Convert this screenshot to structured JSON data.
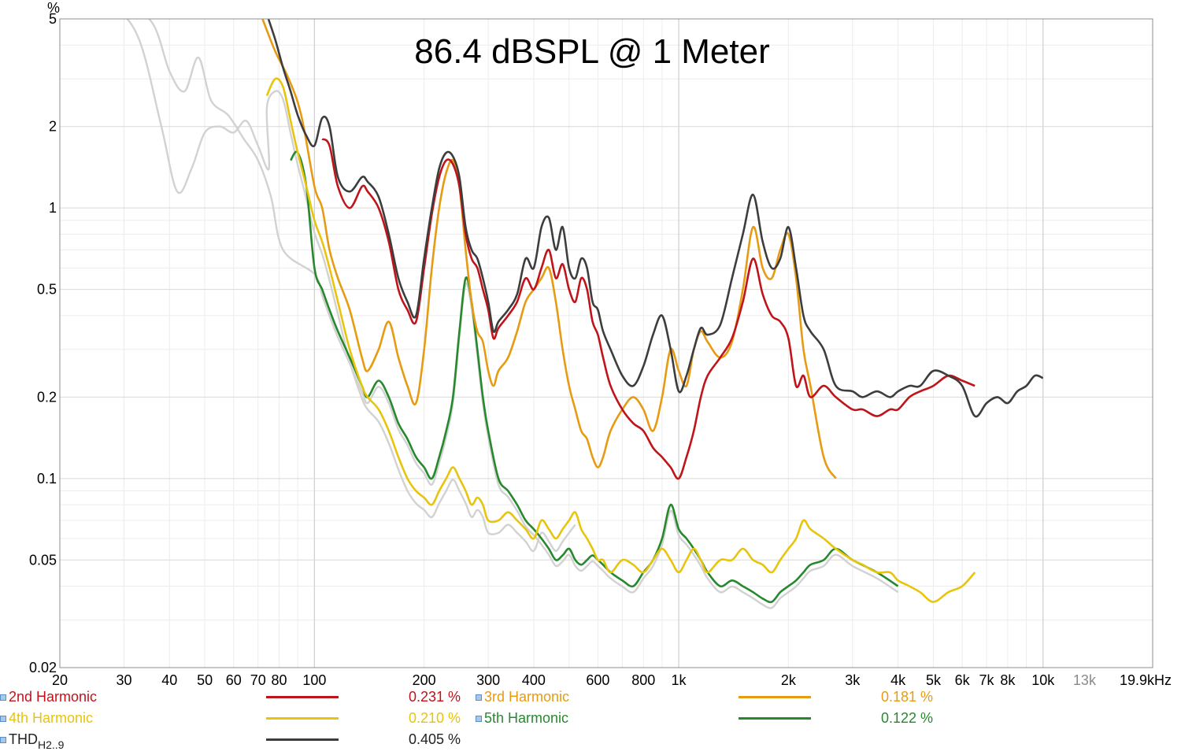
{
  "chart_data": {
    "type": "line",
    "title": "86.4 dBSPL @ 1 Meter",
    "ylabel": "%",
    "xlabel": "",
    "x_scale": "log",
    "y_scale": "log",
    "xlim": [
      20,
      20000
    ],
    "ylim": [
      0.02,
      5
    ],
    "x_ticks": [
      {
        "v": 20,
        "label": "20"
      },
      {
        "v": 30,
        "label": "30"
      },
      {
        "v": 40,
        "label": "40"
      },
      {
        "v": 50,
        "label": "50"
      },
      {
        "v": 60,
        "label": "60"
      },
      {
        "v": 70,
        "label": "70"
      },
      {
        "v": 80,
        "label": "80"
      },
      {
        "v": 100,
        "label": "100"
      },
      {
        "v": 200,
        "label": "200"
      },
      {
        "v": 300,
        "label": "300"
      },
      {
        "v": 400,
        "label": "400"
      },
      {
        "v": 600,
        "label": "600"
      },
      {
        "v": 800,
        "label": "800"
      },
      {
        "v": 1000,
        "label": "1k"
      },
      {
        "v": 2000,
        "label": "2k"
      },
      {
        "v": 3000,
        "label": "3k"
      },
      {
        "v": 4000,
        "label": "4k"
      },
      {
        "v": 5000,
        "label": "5k"
      },
      {
        "v": 6000,
        "label": "6k"
      },
      {
        "v": 7000,
        "label": "7k"
      },
      {
        "v": 8000,
        "label": "8k"
      },
      {
        "v": 10000,
        "label": "10k"
      },
      {
        "v": 13000,
        "label": "13k",
        "dim": true
      },
      {
        "v": 19900,
        "label": "19.9kHz"
      }
    ],
    "y_ticks": [
      {
        "v": 5,
        "label": "5"
      },
      {
        "v": 2,
        "label": "2"
      },
      {
        "v": 1,
        "label": "1"
      },
      {
        "v": 0.5,
        "label": "0.5"
      },
      {
        "v": 0.2,
        "label": "0.2"
      },
      {
        "v": 0.1,
        "label": "0.1"
      },
      {
        "v": 0.05,
        "label": "0.05"
      },
      {
        "v": 0.02,
        "label": "0.02"
      }
    ],
    "grid": true,
    "legend_position": "bottom",
    "series": [
      {
        "name": "THD",
        "name_sub": "H2..9",
        "color": "#3d3d3d",
        "legend_value": "0.405 %",
        "x": [
          74,
          78,
          82,
          86,
          90,
          95,
          100,
          105,
          110,
          116,
          125,
          135,
          140,
          150,
          160,
          170,
          180,
          190,
          200,
          210,
          220,
          230,
          240,
          250,
          260,
          270,
          280,
          290,
          300,
          310,
          320,
          340,
          360,
          380,
          400,
          420,
          440,
          460,
          480,
          500,
          520,
          540,
          560,
          580,
          600,
          620,
          650,
          700,
          750,
          800,
          850,
          900,
          950,
          1000,
          1050,
          1100,
          1150,
          1200,
          1300,
          1400,
          1500,
          1600,
          1700,
          1800,
          1900,
          2000,
          2100,
          2200,
          2300,
          2500,
          2700,
          3000,
          3200,
          3500,
          3800,
          4000,
          4300,
          4600,
          5000,
          5500,
          6000,
          6500,
          7000,
          7500,
          8000,
          8500,
          9000,
          9500,
          10000
        ],
        "y": [
          5.2,
          4.2,
          3.3,
          2.7,
          2.2,
          1.85,
          1.7,
          2.15,
          2.0,
          1.3,
          1.15,
          1.3,
          1.25,
          1.1,
          0.8,
          0.55,
          0.45,
          0.4,
          0.65,
          1.0,
          1.4,
          1.6,
          1.55,
          1.3,
          0.85,
          0.7,
          0.65,
          0.55,
          0.45,
          0.35,
          0.38,
          0.42,
          0.48,
          0.65,
          0.6,
          0.85,
          0.92,
          0.7,
          0.85,
          0.6,
          0.55,
          0.65,
          0.6,
          0.45,
          0.42,
          0.35,
          0.3,
          0.24,
          0.22,
          0.26,
          0.34,
          0.4,
          0.3,
          0.21,
          0.24,
          0.3,
          0.36,
          0.34,
          0.37,
          0.55,
          0.8,
          1.12,
          0.75,
          0.6,
          0.65,
          0.85,
          0.6,
          0.4,
          0.35,
          0.3,
          0.22,
          0.21,
          0.2,
          0.21,
          0.2,
          0.21,
          0.22,
          0.22,
          0.25,
          0.24,
          0.22,
          0.17,
          0.19,
          0.2,
          0.19,
          0.21,
          0.22,
          0.24,
          0.235
        ]
      },
      {
        "name": "2nd Harmonic",
        "color": "#c0141b",
        "legend_value": "0.231 %",
        "x": [
          105,
          110,
          116,
          125,
          135,
          140,
          150,
          160,
          170,
          180,
          190,
          200,
          210,
          220,
          230,
          240,
          250,
          260,
          270,
          280,
          290,
          300,
          310,
          320,
          340,
          360,
          380,
          400,
          420,
          440,
          460,
          480,
          500,
          520,
          540,
          560,
          580,
          600,
          620,
          650,
          700,
          750,
          800,
          850,
          900,
          950,
          1000,
          1050,
          1100,
          1150,
          1200,
          1300,
          1400,
          1500,
          1600,
          1700,
          1800,
          1900,
          2000,
          2100,
          2200,
          2300,
          2500,
          2700,
          3000,
          3200,
          3500,
          3800,
          4000,
          4300,
          4600,
          5000,
          5500,
          6000,
          6500
        ],
        "y": [
          1.8,
          1.7,
          1.2,
          1.0,
          1.2,
          1.15,
          1.0,
          0.75,
          0.5,
          0.42,
          0.38,
          0.6,
          0.95,
          1.3,
          1.5,
          1.45,
          1.2,
          0.8,
          0.65,
          0.6,
          0.5,
          0.42,
          0.33,
          0.36,
          0.4,
          0.45,
          0.55,
          0.5,
          0.6,
          0.7,
          0.55,
          0.62,
          0.5,
          0.45,
          0.55,
          0.5,
          0.38,
          0.34,
          0.28,
          0.22,
          0.18,
          0.16,
          0.15,
          0.13,
          0.12,
          0.11,
          0.1,
          0.12,
          0.15,
          0.2,
          0.24,
          0.28,
          0.33,
          0.45,
          0.65,
          0.48,
          0.4,
          0.38,
          0.33,
          0.22,
          0.24,
          0.2,
          0.22,
          0.2,
          0.18,
          0.18,
          0.17,
          0.18,
          0.18,
          0.2,
          0.21,
          0.22,
          0.24,
          0.23,
          0.22
        ]
      },
      {
        "name": "3rd Harmonic",
        "color": "#e69b12",
        "legend_value": "0.181 %",
        "x": [
          72,
          78,
          85,
          92,
          100,
          105,
          110,
          116,
          125,
          135,
          140,
          150,
          160,
          170,
          180,
          190,
          200,
          210,
          220,
          230,
          240,
          250,
          260,
          270,
          280,
          290,
          300,
          310,
          320,
          340,
          360,
          380,
          400,
          420,
          440,
          460,
          480,
          500,
          520,
          540,
          560,
          580,
          600,
          620,
          650,
          700,
          750,
          800,
          850,
          900,
          950,
          1000,
          1050,
          1100,
          1150,
          1200,
          1300,
          1400,
          1500,
          1600,
          1700,
          1800,
          1900,
          2000,
          2100,
          2200,
          2300,
          2500,
          2700
        ],
        "y": [
          5.0,
          3.8,
          3.0,
          2.2,
          1.2,
          1.0,
          0.7,
          0.55,
          0.42,
          0.28,
          0.25,
          0.3,
          0.38,
          0.28,
          0.22,
          0.19,
          0.3,
          0.6,
          1.0,
          1.35,
          1.5,
          1.2,
          0.7,
          0.45,
          0.35,
          0.32,
          0.25,
          0.22,
          0.25,
          0.28,
          0.35,
          0.45,
          0.5,
          0.55,
          0.6,
          0.45,
          0.3,
          0.22,
          0.18,
          0.15,
          0.14,
          0.12,
          0.11,
          0.12,
          0.15,
          0.18,
          0.2,
          0.18,
          0.15,
          0.2,
          0.3,
          0.25,
          0.22,
          0.3,
          0.35,
          0.32,
          0.28,
          0.32,
          0.5,
          0.85,
          0.6,
          0.55,
          0.7,
          0.8,
          0.55,
          0.3,
          0.22,
          0.12,
          0.1
        ]
      },
      {
        "name": "4th Harmonic",
        "color": "#e8c40c",
        "legend_value": "0.210 %",
        "x": [
          74,
          78,
          82,
          86,
          90,
          95,
          100,
          105,
          110,
          116,
          125,
          135,
          140,
          150,
          160,
          170,
          180,
          190,
          200,
          210,
          220,
          230,
          240,
          250,
          260,
          270,
          280,
          290,
          300,
          320,
          340,
          360,
          380,
          400,
          420,
          440,
          460,
          480,
          500,
          520,
          540,
          560,
          580,
          600,
          620,
          650,
          700,
          750,
          800,
          850,
          900,
          950,
          1000,
          1050,
          1100,
          1150,
          1200,
          1300,
          1400,
          1500,
          1600,
          1700,
          1800,
          1900,
          2000,
          2100,
          2200,
          2300,
          2500,
          2700,
          3000,
          3200,
          3500,
          3800,
          4000,
          4300,
          4600,
          5000,
          5500,
          6000,
          6500
        ],
        "y": [
          2.6,
          3.0,
          2.8,
          2.1,
          1.6,
          1.2,
          0.9,
          0.75,
          0.6,
          0.45,
          0.3,
          0.22,
          0.2,
          0.18,
          0.15,
          0.12,
          0.1,
          0.09,
          0.085,
          0.08,
          0.09,
          0.1,
          0.11,
          0.1,
          0.09,
          0.08,
          0.085,
          0.08,
          0.07,
          0.07,
          0.075,
          0.07,
          0.065,
          0.06,
          0.07,
          0.065,
          0.06,
          0.065,
          0.07,
          0.075,
          0.065,
          0.06,
          0.055,
          0.05,
          0.05,
          0.045,
          0.05,
          0.048,
          0.045,
          0.05,
          0.055,
          0.05,
          0.045,
          0.05,
          0.055,
          0.05,
          0.045,
          0.05,
          0.05,
          0.055,
          0.05,
          0.048,
          0.045,
          0.05,
          0.055,
          0.06,
          0.07,
          0.065,
          0.06,
          0.055,
          0.05,
          0.048,
          0.045,
          0.045,
          0.042,
          0.04,
          0.038,
          0.035,
          0.038,
          0.04,
          0.045
        ]
      },
      {
        "name": "5th Harmonic",
        "color": "#26892e",
        "legend_value": "0.122 %",
        "x": [
          86,
          90,
          95,
          100,
          105,
          110,
          116,
          125,
          135,
          140,
          150,
          160,
          170,
          180,
          190,
          200,
          210,
          220,
          230,
          240,
          250,
          260,
          270,
          280,
          290,
          300,
          320,
          340,
          360,
          380,
          400,
          420,
          440,
          460,
          480,
          500,
          520,
          540,
          560,
          580,
          600,
          620,
          650,
          700,
          750,
          800,
          850,
          900,
          950,
          1000,
          1050,
          1100,
          1150,
          1200,
          1300,
          1400,
          1500,
          1600,
          1700,
          1800,
          1900,
          2000,
          2100,
          2200,
          2300,
          2500,
          2700,
          3000,
          3500,
          4000
        ],
        "y": [
          1.5,
          1.6,
          1.2,
          0.6,
          0.5,
          0.42,
          0.35,
          0.28,
          0.22,
          0.2,
          0.23,
          0.2,
          0.16,
          0.14,
          0.12,
          0.11,
          0.1,
          0.12,
          0.15,
          0.2,
          0.35,
          0.55,
          0.45,
          0.3,
          0.2,
          0.15,
          0.1,
          0.09,
          0.08,
          0.07,
          0.065,
          0.06,
          0.055,
          0.05,
          0.052,
          0.055,
          0.05,
          0.048,
          0.05,
          0.052,
          0.05,
          0.048,
          0.045,
          0.042,
          0.04,
          0.045,
          0.05,
          0.06,
          0.08,
          0.065,
          0.06,
          0.055,
          0.05,
          0.045,
          0.04,
          0.042,
          0.04,
          0.038,
          0.036,
          0.035,
          0.038,
          0.04,
          0.042,
          0.045,
          0.048,
          0.05,
          0.055,
          0.05,
          0.045,
          0.04
        ]
      }
    ],
    "background_traces_color": "#d2d2d2"
  }
}
